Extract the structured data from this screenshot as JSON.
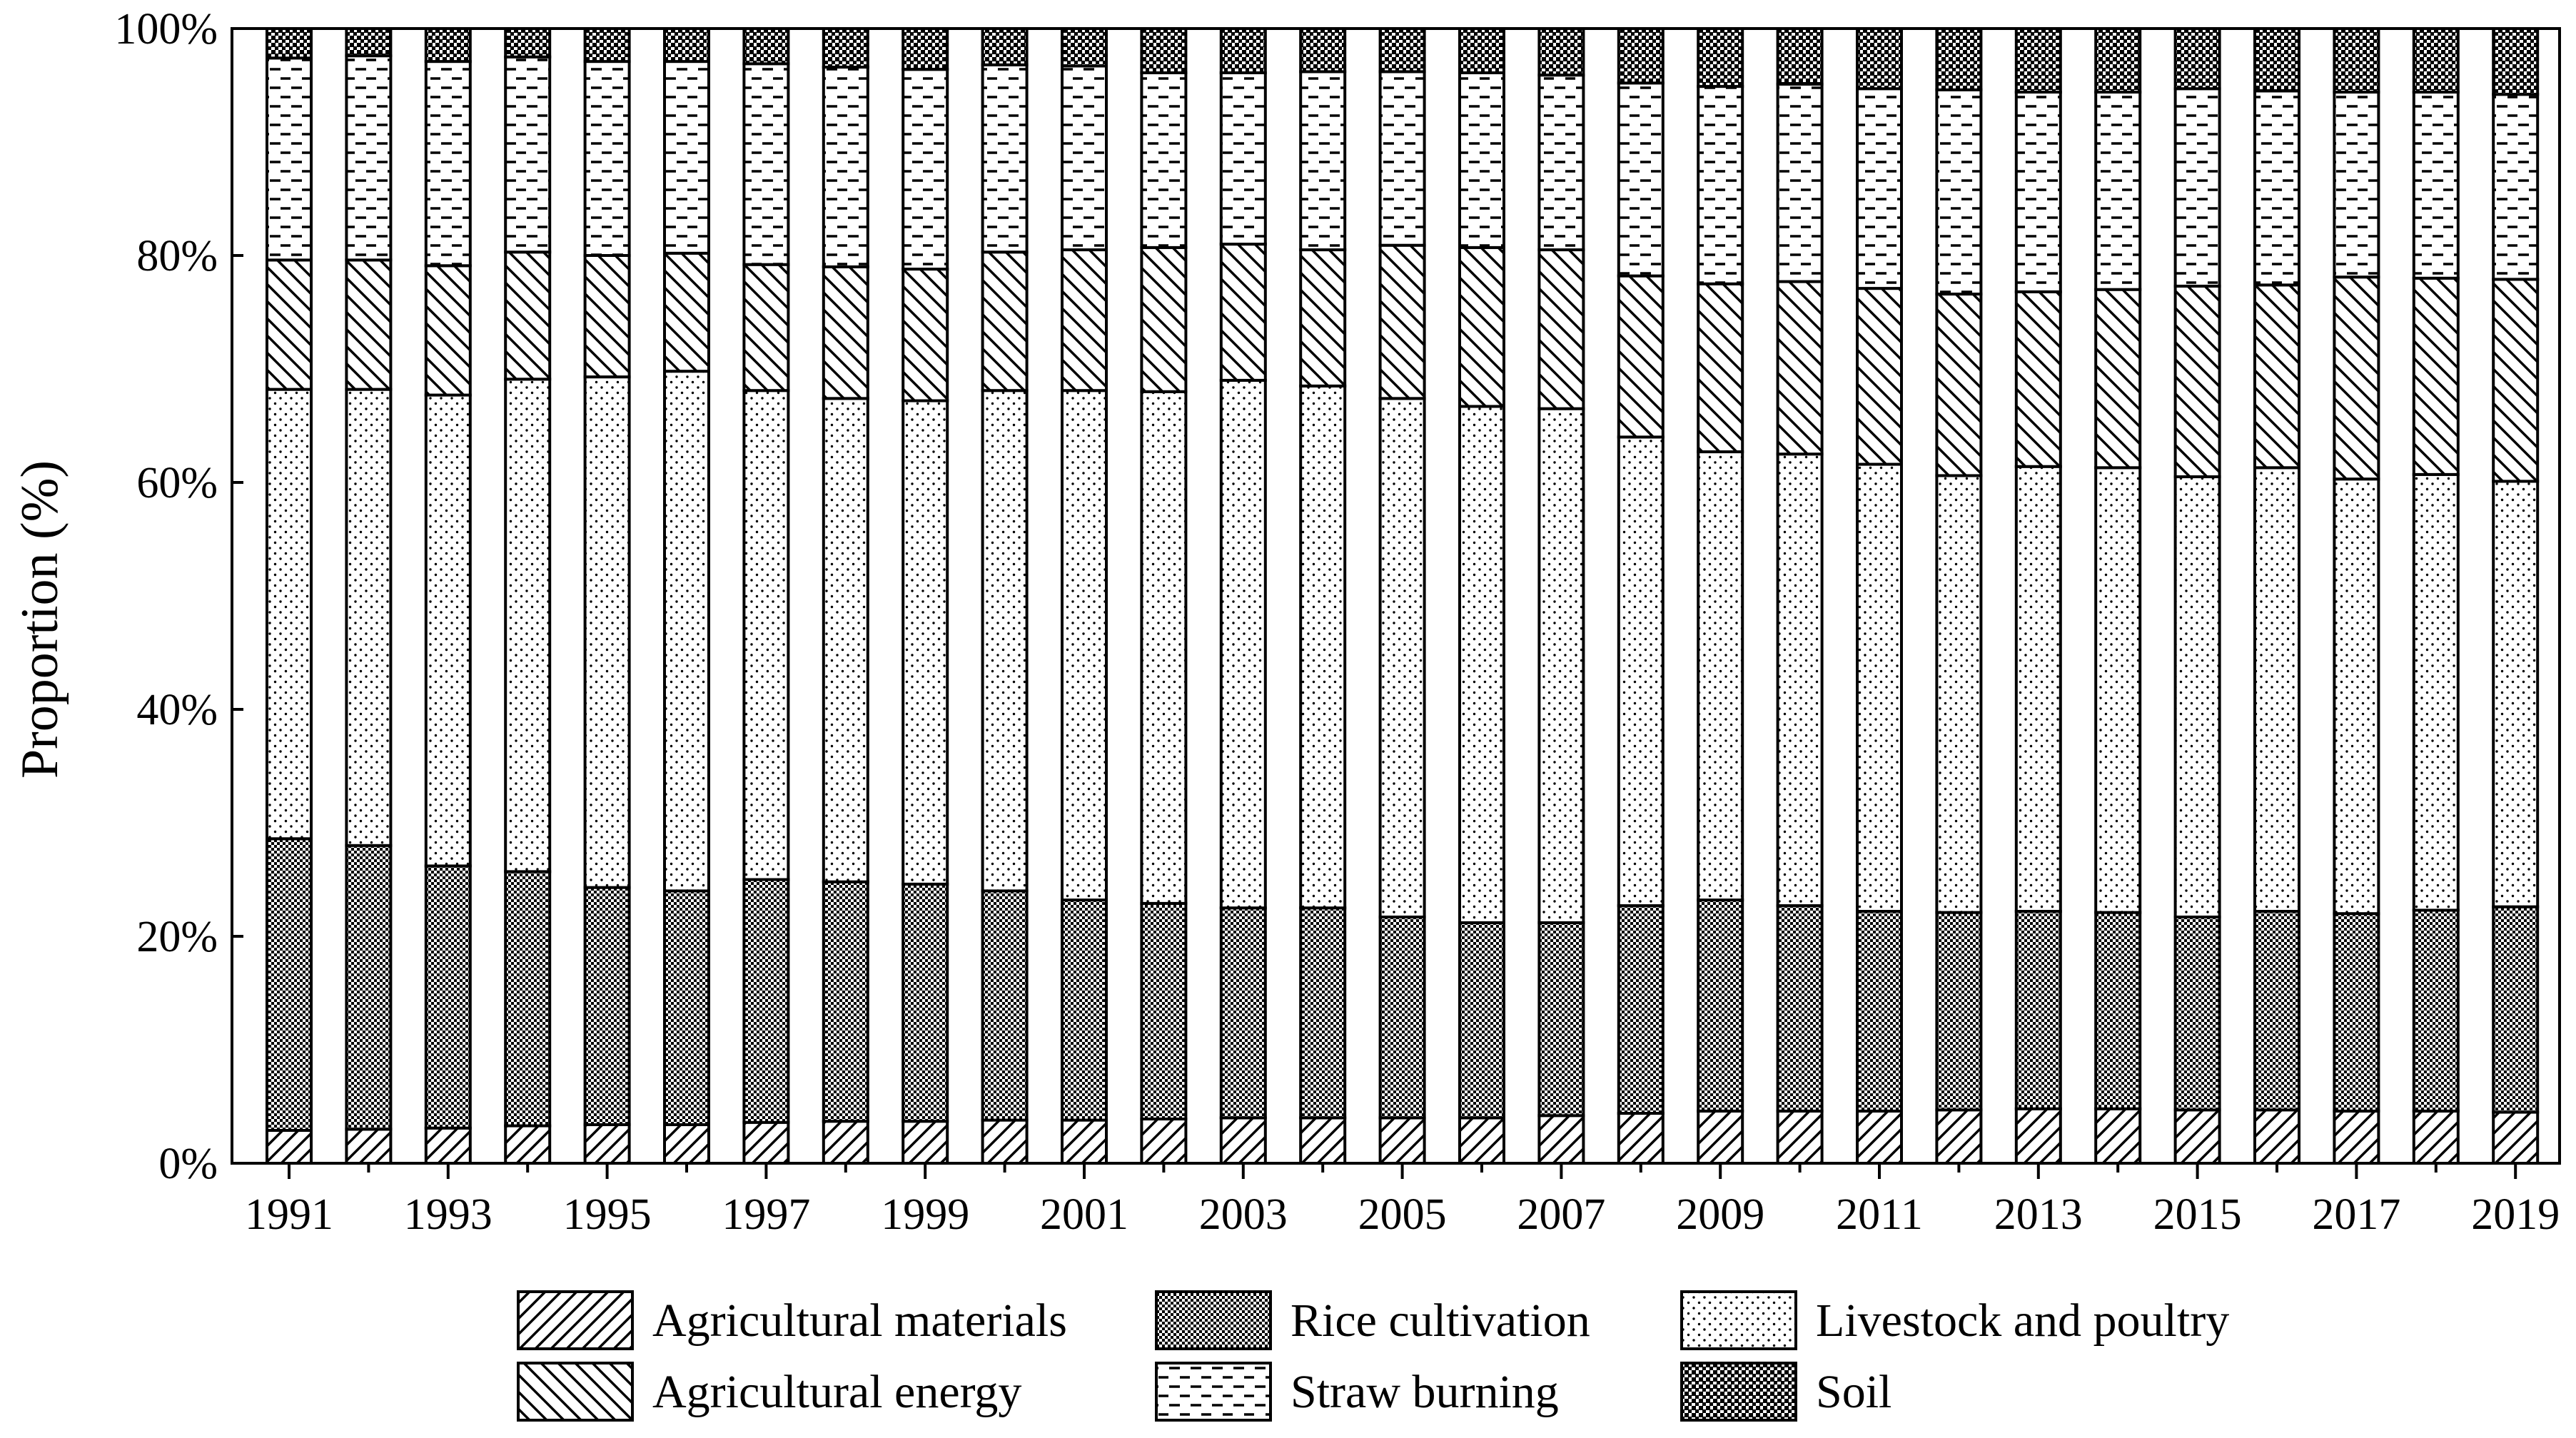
{
  "chart_data": {
    "type": "bar",
    "stacked": true,
    "title": "",
    "xlabel": "",
    "ylabel": "Proportion (%)",
    "ylim": [
      0,
      100
    ],
    "y_ticks": [
      "0%",
      "20%",
      "40%",
      "60%",
      "80%",
      "100%"
    ],
    "y_tick_values": [
      0,
      20,
      40,
      60,
      80,
      100
    ],
    "x_tick_labels": [
      "1991",
      "1993",
      "1995",
      "1997",
      "1999",
      "2001",
      "2003",
      "2005",
      "2007",
      "2009",
      "2011",
      "2013",
      "2015",
      "2017",
      "2019"
    ],
    "categories": [
      "1991",
      "1992",
      "1993",
      "1994",
      "1995",
      "1996",
      "1997",
      "1998",
      "1999",
      "2000",
      "2001",
      "2002",
      "2003",
      "2004",
      "2005",
      "2006",
      "2007",
      "2008",
      "2009",
      "2010",
      "2011",
      "2012",
      "2013",
      "2014",
      "2015",
      "2016",
      "2017",
      "2018",
      "2019"
    ],
    "legend_position": "bottom",
    "series": [
      {
        "name": "Agricultural materials",
        "pattern": "diag-fwd",
        "values": [
          2.9,
          3.0,
          3.1,
          3.3,
          3.4,
          3.4,
          3.6,
          3.7,
          3.7,
          3.8,
          3.8,
          3.9,
          4.0,
          4.0,
          4.0,
          4.0,
          4.2,
          4.4,
          4.6,
          4.6,
          4.6,
          4.7,
          4.8,
          4.8,
          4.7,
          4.7,
          4.6,
          4.6,
          4.5
        ]
      },
      {
        "name": "Rice cultivation",
        "pattern": "dense-dots",
        "values": [
          25.7,
          25.0,
          23.1,
          22.4,
          20.9,
          20.6,
          21.4,
          21.1,
          20.9,
          20.2,
          19.4,
          19.0,
          18.5,
          18.5,
          17.7,
          17.2,
          17.0,
          18.3,
          18.6,
          18.1,
          17.6,
          17.4,
          17.4,
          17.3,
          17.0,
          17.5,
          17.4,
          17.7,
          18.1
        ]
      },
      {
        "name": "Livestock and poultry",
        "pattern": "sparse-dots",
        "values": [
          39.6,
          40.2,
          41.5,
          43.4,
          45.0,
          45.8,
          43.1,
          42.6,
          42.6,
          44.1,
          44.9,
          45.1,
          46.5,
          46.0,
          45.7,
          45.5,
          45.3,
          41.3,
          39.5,
          39.8,
          39.4,
          38.5,
          39.2,
          39.2,
          38.8,
          39.1,
          38.3,
          38.4,
          37.5
        ]
      },
      {
        "name": "Agricultural energy",
        "pattern": "diag-back",
        "values": [
          11.4,
          11.4,
          11.4,
          11.2,
          10.7,
          10.4,
          11.1,
          11.6,
          11.6,
          12.2,
          12.4,
          12.7,
          12.0,
          12.0,
          13.5,
          14.0,
          14.0,
          14.2,
          14.8,
          15.2,
          15.5,
          16.0,
          15.4,
          15.7,
          16.8,
          16.1,
          17.8,
          17.3,
          17.8
        ]
      },
      {
        "name": "Straw burning",
        "pattern": "dashes",
        "values": [
          17.8,
          18.0,
          18.0,
          17.2,
          17.1,
          16.9,
          17.7,
          17.6,
          17.6,
          16.5,
          16.2,
          15.4,
          15.1,
          15.7,
          15.3,
          15.4,
          15.4,
          17.0,
          17.4,
          17.4,
          17.6,
          18.0,
          17.6,
          17.4,
          17.4,
          17.1,
          16.3,
          16.4,
          16.3
        ]
      },
      {
        "name": "Soil",
        "pattern": "checker",
        "values": [
          2.6,
          2.4,
          2.9,
          2.5,
          2.9,
          2.9,
          3.1,
          3.4,
          3.6,
          3.2,
          3.3,
          3.9,
          3.9,
          3.8,
          3.8,
          3.9,
          4.1,
          4.8,
          5.1,
          4.9,
          5.3,
          5.4,
          5.6,
          5.6,
          5.3,
          5.6,
          5.6,
          5.6,
          5.8
        ]
      }
    ]
  }
}
